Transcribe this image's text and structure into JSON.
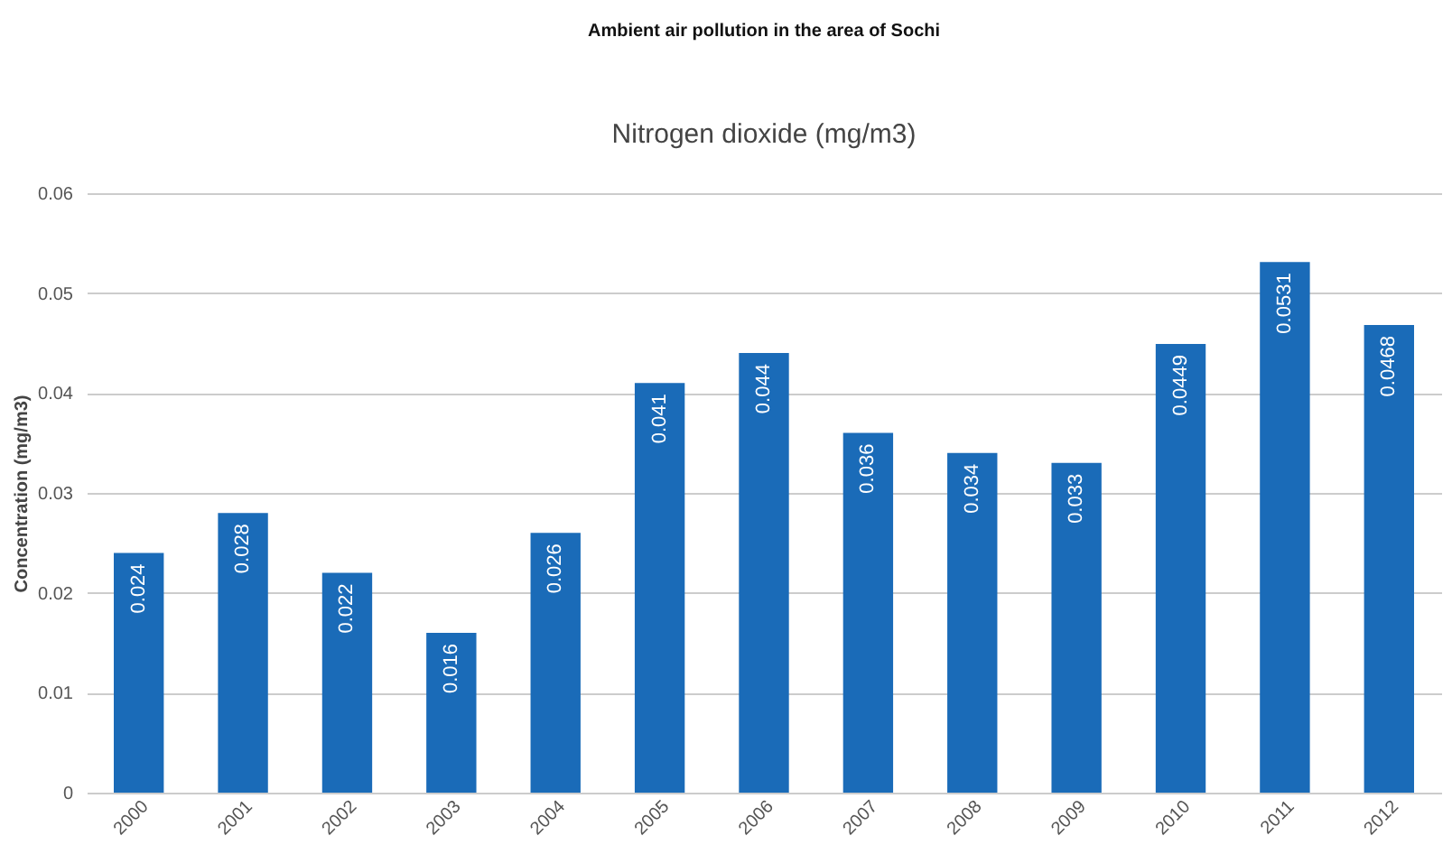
{
  "chart_data": {
    "type": "bar",
    "title": "Ambient air pollution in the area of Sochi",
    "subtitle": "Nitrogen dioxide (mg/m3)",
    "ylabel": "Concentration (mg/m3)",
    "categories": [
      "2000",
      "2001",
      "2002",
      "2003",
      "2004",
      "2005",
      "2006",
      "2007",
      "2008",
      "2009",
      "2010",
      "2011",
      "2012"
    ],
    "values": [
      0.024,
      0.028,
      0.022,
      0.016,
      0.026,
      0.041,
      0.044,
      0.036,
      0.034,
      0.033,
      0.0449,
      0.0531,
      0.0468
    ],
    "color": "#1a6bb8",
    "ylim": [
      0,
      0.06
    ],
    "yticks": [
      0,
      0.01,
      0.02,
      0.03,
      0.04,
      0.05,
      0.06
    ],
    "grid": "y",
    "data_labels": true
  }
}
